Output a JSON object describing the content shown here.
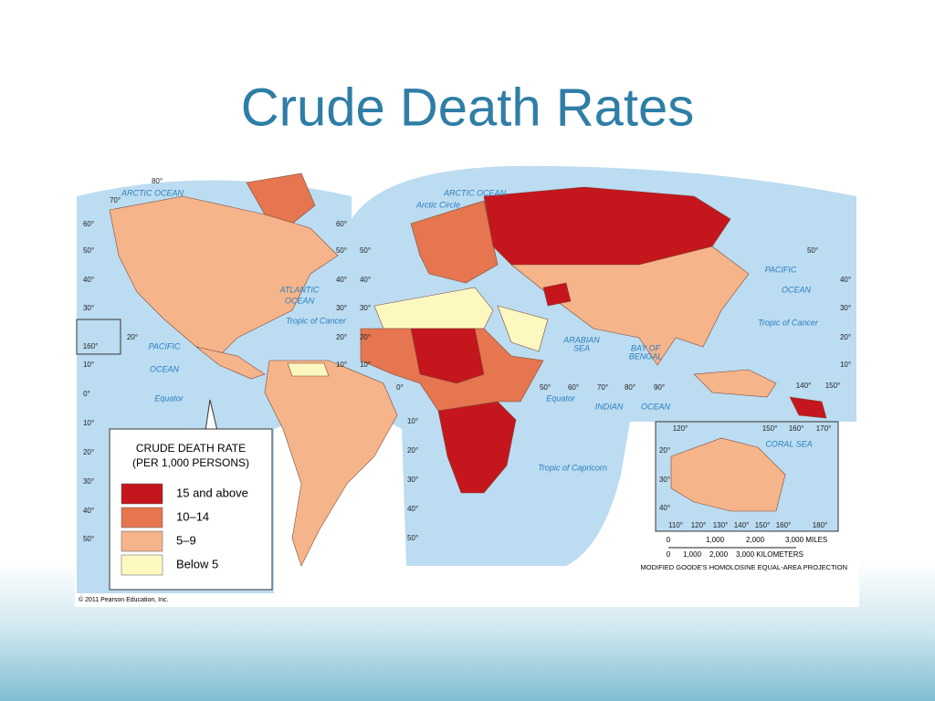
{
  "title": "Crude Death Rates",
  "legend": {
    "title": [
      "CRUDE DEATH RATE",
      "(PER 1,000 PERSONS)"
    ],
    "items": [
      {
        "label": "15 and above",
        "color": "#c4161c"
      },
      {
        "label": "10–14",
        "color": "#e5764f"
      },
      {
        "label": "5–9",
        "color": "#f6b48b"
      },
      {
        "label": "Below 5",
        "color": "#fdf8c0"
      }
    ]
  },
  "map": {
    "labels": [
      "ARCTIC OCEAN",
      "ARCTIC OCEAN",
      "Arctic Circle",
      "ATLANTIC",
      "OCEAN",
      "PACIFIC",
      "OCEAN",
      "PACIFIC",
      "OCEAN",
      "Tropic of Cancer",
      "Tropic of Cancer",
      "Equator",
      "Equator",
      "ARABIAN",
      "SEA",
      "BAY OF",
      "BENGAL",
      "INDIAN",
      "OCEAN",
      "Tropic of Capricorn",
      "CORAL SEA"
    ],
    "degree_labels": [
      "80°",
      "70°",
      "60°",
      "50°",
      "40°",
      "30°",
      "20°",
      "160°",
      "10°",
      "0°",
      "10°",
      "20°",
      "30°",
      "40°",
      "50°",
      "60°",
      "50°",
      "40°",
      "30°",
      "20°",
      "10°",
      "50°",
      "40°",
      "30°",
      "20°",
      "10°",
      "0°",
      "10°",
      "20°",
      "30°",
      "40°",
      "50°",
      "50°",
      "60°",
      "70°",
      "80°",
      "90°",
      "50°",
      "40°",
      "30°",
      "20°",
      "10°",
      "140°",
      "150°",
      "120°",
      "150°",
      "160°",
      "170°",
      "20°",
      "30°",
      "40°",
      "110°",
      "120°",
      "130°",
      "140°",
      "150°",
      "160°",
      "180°"
    ],
    "scale_miles": [
      "0",
      "1,000",
      "2,000",
      "3,000 MILES"
    ],
    "scale_km": [
      "0",
      "1,000",
      "2,000",
      "3,000 KILOMETERS"
    ],
    "projection": "MODIFIED GOODE'S HOMOLOSINE EQUAL-AREA PROJECTION",
    "credit": "© 2011 Pearson Education, Inc."
  }
}
